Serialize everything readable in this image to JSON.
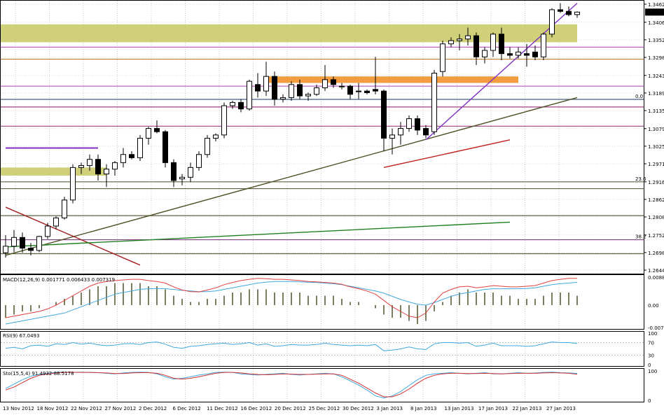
{
  "chart_data": {
    "type": "candlestick",
    "instrument_label": "",
    "price_axis": {
      "ticks": [
        "1.34620",
        "1.34065",
        "1.33525",
        "1.32985",
        "1.32430",
        "1.31890",
        "1.31350",
        "1.30795",
        "1.30255",
        "1.29715",
        "1.29160",
        "1.28620",
        "1.28080",
        "1.27525",
        "1.26985",
        "1.26445"
      ],
      "current_price": "1.34377"
    },
    "date_axis": {
      "ticks": [
        "13 Nov 2012",
        "18 Nov 2012",
        "22 Nov 2012",
        "27 Nov 2012",
        "2 Dec 2012",
        "6 Dec 2012",
        "11 Dec 2012",
        "16 Dec 2012",
        "20 Dec 2012",
        "25 Dec 2012",
        "30 Dec 2012",
        "3 Jan 2013",
        "8 Jan 2013",
        "13 Jan 2013",
        "17 Jan 2013",
        "22 Jan 2013",
        "27 Jan 2013"
      ]
    },
    "fib_labels": [
      "0.0",
      "23.6",
      "38.2"
    ],
    "candles": [
      {
        "o": 1.2698,
        "h": 1.2752,
        "l": 1.2683,
        "c": 1.2718
      },
      {
        "o": 1.2718,
        "h": 1.2768,
        "l": 1.27,
        "c": 1.2745
      },
      {
        "o": 1.2745,
        "h": 1.276,
        "l": 1.2698,
        "c": 1.2712
      },
      {
        "o": 1.2712,
        "h": 1.2728,
        "l": 1.269,
        "c": 1.2705
      },
      {
        "o": 1.2705,
        "h": 1.275,
        "l": 1.27,
        "c": 1.2748
      },
      {
        "o": 1.2748,
        "h": 1.279,
        "l": 1.274,
        "c": 1.278
      },
      {
        "o": 1.278,
        "h": 1.281,
        "l": 1.277,
        "c": 1.2805
      },
      {
        "o": 1.2805,
        "h": 1.287,
        "l": 1.28,
        "c": 1.286
      },
      {
        "o": 1.286,
        "h": 1.297,
        "l": 1.285,
        "c": 1.296
      },
      {
        "o": 1.296,
        "h": 1.2975,
        "l": 1.294,
        "c": 1.2966
      },
      {
        "o": 1.2966,
        "h": 1.3,
        "l": 1.295,
        "c": 1.2985
      },
      {
        "o": 1.2985,
        "h": 1.3,
        "l": 1.292,
        "c": 1.294
      },
      {
        "o": 1.294,
        "h": 1.297,
        "l": 1.29,
        "c": 1.2955
      },
      {
        "o": 1.2955,
        "h": 1.298,
        "l": 1.2935,
        "c": 1.2975
      },
      {
        "o": 1.2975,
        "h": 1.302,
        "l": 1.296,
        "c": 1.3
      },
      {
        "o": 1.3,
        "h": 1.301,
        "l": 1.2985,
        "c": 1.299
      },
      {
        "o": 1.299,
        "h": 1.306,
        "l": 1.298,
        "c": 1.305
      },
      {
        "o": 1.305,
        "h": 1.3085,
        "l": 1.303,
        "c": 1.308
      },
      {
        "o": 1.308,
        "h": 1.3105,
        "l": 1.3065,
        "c": 1.307
      },
      {
        "o": 1.307,
        "h": 1.3075,
        "l": 1.296,
        "c": 1.2975
      },
      {
        "o": 1.2975,
        "h": 1.2985,
        "l": 1.29,
        "c": 1.292
      },
      {
        "o": 1.2925,
        "h": 1.294,
        "l": 1.2905,
        "c": 1.293
      },
      {
        "o": 1.293,
        "h": 1.2975,
        "l": 1.2915,
        "c": 1.296
      },
      {
        "o": 1.296,
        "h": 1.301,
        "l": 1.295,
        "c": 1.3
      },
      {
        "o": 1.3,
        "h": 1.306,
        "l": 1.299,
        "c": 1.305
      },
      {
        "o": 1.305,
        "h": 1.3065,
        "l": 1.304,
        "c": 1.306
      },
      {
        "o": 1.306,
        "h": 1.316,
        "l": 1.305,
        "c": 1.315
      },
      {
        "o": 1.315,
        "h": 1.3165,
        "l": 1.314,
        "c": 1.316
      },
      {
        "o": 1.316,
        "h": 1.317,
        "l": 1.313,
        "c": 1.314
      },
      {
        "o": 1.314,
        "h": 1.323,
        "l": 1.3135,
        "c": 1.3225
      },
      {
        "o": 1.3215,
        "h": 1.325,
        "l": 1.3175,
        "c": 1.3195
      },
      {
        "o": 1.3195,
        "h": 1.3285,
        "l": 1.318,
        "c": 1.324
      },
      {
        "o": 1.324,
        "h": 1.3255,
        "l": 1.315,
        "c": 1.317
      },
      {
        "o": 1.317,
        "h": 1.3185,
        "l": 1.316,
        "c": 1.3175
      },
      {
        "o": 1.3175,
        "h": 1.3225,
        "l": 1.3165,
        "c": 1.3215
      },
      {
        "o": 1.3215,
        "h": 1.323,
        "l": 1.317,
        "c": 1.318
      },
      {
        "o": 1.318,
        "h": 1.319,
        "l": 1.3165,
        "c": 1.3185
      },
      {
        "o": 1.3185,
        "h": 1.3215,
        "l": 1.318,
        "c": 1.3205
      },
      {
        "o": 1.3205,
        "h": 1.3275,
        "l": 1.3195,
        "c": 1.323
      },
      {
        "o": 1.323,
        "h": 1.324,
        "l": 1.3205,
        "c": 1.3215
      },
      {
        "o": 1.321,
        "h": 1.322,
        "l": 1.32,
        "c": 1.321
      },
      {
        "o": 1.321,
        "h": 1.3215,
        "l": 1.317,
        "c": 1.3185
      },
      {
        "o": 1.3195,
        "h": 1.322,
        "l": 1.317,
        "c": 1.3195
      },
      {
        "o": 1.3195,
        "h": 1.32,
        "l": 1.3185,
        "c": 1.319
      },
      {
        "o": 1.32,
        "h": 1.33,
        "l": 1.3185,
        "c": 1.3195
      },
      {
        "o": 1.3195,
        "h": 1.32,
        "l": 1.301,
        "c": 1.305
      },
      {
        "o": 1.305,
        "h": 1.308,
        "l": 1.3,
        "c": 1.306
      },
      {
        "o": 1.306,
        "h": 1.31,
        "l": 1.303,
        "c": 1.308
      },
      {
        "o": 1.308,
        "h": 1.312,
        "l": 1.307,
        "c": 1.311
      },
      {
        "o": 1.311,
        "h": 1.312,
        "l": 1.306,
        "c": 1.3075
      },
      {
        "o": 1.308,
        "h": 1.309,
        "l": 1.305,
        "c": 1.306
      },
      {
        "o": 1.307,
        "h": 1.326,
        "l": 1.306,
        "c": 1.325
      },
      {
        "o": 1.3255,
        "h": 1.335,
        "l": 1.324,
        "c": 1.334
      },
      {
        "o": 1.334,
        "h": 1.336,
        "l": 1.333,
        "c": 1.335
      },
      {
        "o": 1.335,
        "h": 1.337,
        "l": 1.332,
        "c": 1.3355
      },
      {
        "o": 1.3355,
        "h": 1.339,
        "l": 1.3335,
        "c": 1.3365
      },
      {
        "o": 1.3365,
        "h": 1.3375,
        "l": 1.3275,
        "c": 1.33
      },
      {
        "o": 1.33,
        "h": 1.333,
        "l": 1.328,
        "c": 1.332
      },
      {
        "o": 1.332,
        "h": 1.3375,
        "l": 1.33,
        "c": 1.337
      },
      {
        "o": 1.337,
        "h": 1.339,
        "l": 1.329,
        "c": 1.331
      },
      {
        "o": 1.331,
        "h": 1.333,
        "l": 1.3295,
        "c": 1.3305
      },
      {
        "o": 1.3305,
        "h": 1.333,
        "l": 1.3295,
        "c": 1.3315
      },
      {
        "o": 1.331,
        "h": 1.334,
        "l": 1.327,
        "c": 1.3305
      },
      {
        "o": 1.3315,
        "h": 1.3335,
        "l": 1.329,
        "c": 1.33
      },
      {
        "o": 1.33,
        "h": 1.3375,
        "l": 1.329,
        "c": 1.337
      },
      {
        "o": 1.337,
        "h": 1.345,
        "l": 1.336,
        "c": 1.3445
      },
      {
        "o": 1.3445,
        "h": 1.3465,
        "l": 1.3435,
        "c": 1.344
      },
      {
        "o": 1.344,
        "h": 1.3455,
        "l": 1.3425,
        "c": 1.343
      },
      {
        "o": 1.343,
        "h": 1.344,
        "l": 1.342,
        "c": 1.34377
      }
    ],
    "zones": [
      {
        "from": 1.3345,
        "to": 1.34,
        "color": "#c8c864"
      },
      {
        "from": 1.322,
        "to": 1.324,
        "color": "#f08c1e"
      },
      {
        "from": 1.2935,
        "to": 1.296,
        "color": "#c8c864"
      }
    ],
    "hlines": [
      {
        "y": 1.333,
        "color": "#c060c0"
      },
      {
        "y": 1.3293,
        "color": "#c08040"
      },
      {
        "y": 1.321,
        "color": "#c060c0"
      },
      {
        "y": 1.31695,
        "color": "#406080"
      },
      {
        "y": 1.3146,
        "color": "#a04080"
      },
      {
        "y": 1.3087,
        "color": "#a04080"
      },
      {
        "y": 1.2916,
        "color": "#606040"
      },
      {
        "y": 1.2895,
        "color": "#606040"
      },
      {
        "y": 1.2812,
        "color": "#606040"
      },
      {
        "y": 1.2738,
        "color": "#804080"
      },
      {
        "y": 1.2695,
        "color": "#606040"
      }
    ],
    "trendlines": [
      {
        "x1": 0,
        "y1": 1.269,
        "x2": 68,
        "y2": 1.3175,
        "color": "#505028"
      },
      {
        "x1": 45,
        "y1": 1.296,
        "x2": 60,
        "y2": 1.3045,
        "color": "#c02020"
      },
      {
        "x1": 0,
        "y1": 1.2838,
        "x2": 16,
        "y2": 1.266,
        "color": "#a02020"
      },
      {
        "x1": 50,
        "y1": 1.3045,
        "x2": 68,
        "y2": 1.3465,
        "color": "#8030c0"
      },
      {
        "x1": 0,
        "y1": 1.2716,
        "x2": 60,
        "y2": 1.2792,
        "color": "#208020"
      }
    ],
    "short_segment": {
      "x1": 0,
      "x2": 10,
      "y": 1.302,
      "color": "#8030c0"
    },
    "macd": {
      "label": "MACD(12,26,9) 0.001771 0.006433 0.007319",
      "axis_ticks": [
        "0.00889",
        "0.00",
        "-0.00711"
      ],
      "hist": [
        -0.004,
        -0.003,
        -0.002,
        -0.002,
        -0.001,
        0.0,
        0.001,
        0.002,
        0.003,
        0.004,
        0.005,
        0.006,
        0.006,
        0.007,
        0.007,
        0.007,
        0.007,
        0.006,
        0.006,
        0.005,
        0.003,
        0.002,
        0.001,
        0.001,
        0.002,
        0.002,
        0.003,
        0.004,
        0.004,
        0.005,
        0.005,
        0.005,
        0.004,
        0.004,
        0.004,
        0.004,
        0.003,
        0.003,
        0.003,
        0.003,
        0.002,
        0.001,
        0.001,
        0.0,
        -0.001,
        -0.003,
        -0.004,
        -0.004,
        -0.005,
        -0.006,
        -0.005,
        -0.002,
        0.001,
        0.003,
        0.004,
        0.005,
        0.004,
        0.004,
        0.004,
        0.003,
        0.003,
        0.002,
        0.002,
        0.002,
        0.003,
        0.004,
        0.004,
        0.004,
        0.003
      ],
      "signal": [
        -0.006,
        -0.0055,
        -0.005,
        -0.0045,
        -0.004,
        -0.0035,
        -0.003,
        -0.0025,
        -0.0015,
        -0.0005,
        0.0005,
        0.0015,
        0.0025,
        0.0035,
        0.004,
        0.0045,
        0.005,
        0.0052,
        0.0053,
        0.0052,
        0.005,
        0.0047,
        0.0045,
        0.0043,
        0.0043,
        0.0045,
        0.005,
        0.0055,
        0.006,
        0.0065,
        0.007,
        0.0073,
        0.0075,
        0.0075,
        0.0075,
        0.0074,
        0.0073,
        0.0072,
        0.007,
        0.0068,
        0.0065,
        0.006,
        0.0055,
        0.005,
        0.0045,
        0.0038,
        0.0028,
        0.0018,
        0.001,
        0.0003,
        0.0,
        0.0008,
        0.0018,
        0.0028,
        0.0035,
        0.004,
        0.0045,
        0.005,
        0.0052,
        0.0052,
        0.0052,
        0.0052,
        0.0053,
        0.0055,
        0.006,
        0.0065,
        0.0068,
        0.007,
        0.0073
      ],
      "macd_line": [
        -0.004,
        -0.0035,
        -0.003,
        -0.0025,
        -0.002,
        -0.0012,
        0.0,
        0.0015,
        0.003,
        0.0045,
        0.006,
        0.007,
        0.0075,
        0.0078,
        0.008,
        0.0082,
        0.0082,
        0.0078,
        0.0075,
        0.007,
        0.0058,
        0.0048,
        0.0043,
        0.0042,
        0.0048,
        0.0055,
        0.0065,
        0.0072,
        0.0078,
        0.0082,
        0.0085,
        0.0084,
        0.0082,
        0.0082,
        0.008,
        0.0078,
        0.0075,
        0.0074,
        0.0072,
        0.007,
        0.0066,
        0.0058,
        0.0052,
        0.0045,
        0.0035,
        0.0015,
        -0.0005,
        -0.002,
        -0.0035,
        -0.004,
        -0.0025,
        0.001,
        0.0038,
        0.005,
        0.0058,
        0.006,
        0.0055,
        0.0058,
        0.0062,
        0.006,
        0.0058,
        0.0058,
        0.006,
        0.0062,
        0.007,
        0.0078,
        0.0082,
        0.0085,
        0.0085
      ]
    },
    "rsi": {
      "label": "RSI(9) 67.0493",
      "axis_ticks": [
        "100",
        "70",
        "30",
        "0"
      ],
      "values": [
        52,
        55,
        50,
        60,
        62,
        58,
        66,
        64,
        70,
        65,
        68,
        63,
        60,
        62,
        66,
        67,
        64,
        70,
        72,
        65,
        55,
        52,
        58,
        60,
        64,
        66,
        68,
        64,
        66,
        70,
        62,
        66,
        58,
        60,
        64,
        62,
        62,
        64,
        68,
        64,
        62,
        60,
        62,
        60,
        64,
        44,
        46,
        50,
        56,
        50,
        48,
        66,
        70,
        70,
        68,
        70,
        58,
        62,
        68,
        60,
        60,
        60,
        58,
        60,
        66,
        72,
        70,
        70,
        67
      ]
    },
    "stoch": {
      "label": "Sto(15,5,4) 91.4932 88.5178",
      "axis_ticks": [
        "100",
        "0"
      ],
      "main": [
        40,
        55,
        70,
        82,
        88,
        92,
        95,
        96,
        95,
        96,
        95,
        94,
        92,
        90,
        93,
        95,
        96,
        95,
        90,
        80,
        72,
        75,
        80,
        86,
        90,
        95,
        96,
        95,
        90,
        88,
        86,
        88,
        90,
        92,
        88,
        86,
        88,
        90,
        92,
        90,
        80,
        66,
        52,
        35,
        15,
        8,
        15,
        30,
        50,
        70,
        85,
        90,
        92,
        94,
        92,
        90,
        92,
        94,
        90,
        90,
        92,
        94,
        92,
        93,
        95,
        96,
        94,
        93,
        91.5
      ],
      "signal": [
        35,
        45,
        60,
        75,
        85,
        90,
        93,
        95,
        95,
        95,
        95,
        94,
        93,
        91,
        91,
        93,
        94,
        94,
        92,
        85,
        75,
        72,
        75,
        80,
        86,
        92,
        95,
        95,
        93,
        90,
        88,
        87,
        88,
        90,
        89,
        88,
        88,
        89,
        90,
        90,
        85,
        72,
        58,
        42,
        25,
        12,
        12,
        22,
        38,
        58,
        75,
        85,
        90,
        92,
        92,
        91,
        91,
        92,
        91,
        90,
        91,
        92,
        92,
        92,
        93,
        94,
        93,
        92,
        88.5
      ]
    }
  }
}
